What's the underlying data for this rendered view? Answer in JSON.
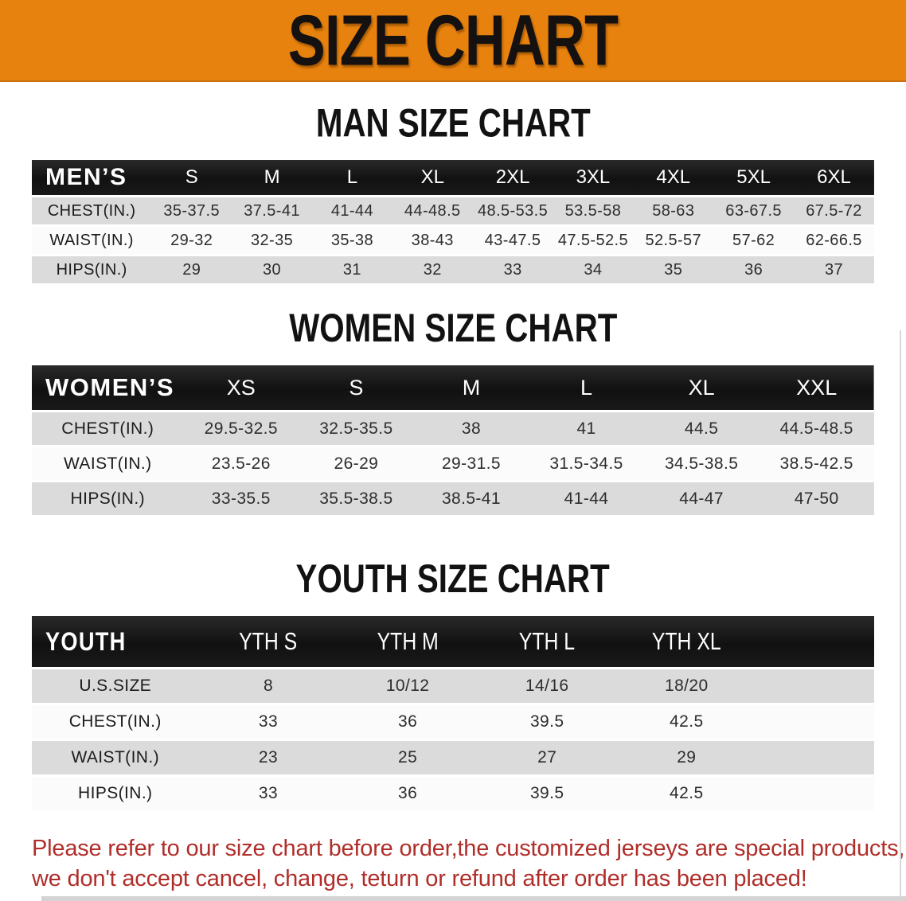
{
  "banner": {
    "title": "SIZE CHART"
  },
  "sections": [
    {
      "heading": "MAN SIZE CHART",
      "table": {
        "header_label": "MEN’S",
        "sizes": [
          "S",
          "M",
          "L",
          "XL",
          "2XL",
          "3XL",
          "4XL",
          "5XL",
          "6XL"
        ],
        "rows": [
          {
            "label": "CHEST(IN.)",
            "values": [
              "35-37.5",
              "37.5-41",
              "41-44",
              "44-48.5",
              "48.5-53.5",
              "53.5-58",
              "58-63",
              "63-67.5",
              "67.5-72"
            ]
          },
          {
            "label": "WAIST(IN.)",
            "values": [
              "29-32",
              "32-35",
              "35-38",
              "38-43",
              "43-47.5",
              "47.5-52.5",
              "52.5-57",
              "57-62",
              "62-66.5"
            ]
          },
          {
            "label": "HIPS(IN.)",
            "values": [
              "29",
              "30",
              "31",
              "32",
              "33",
              "34",
              "35",
              "36",
              "37"
            ]
          }
        ]
      }
    },
    {
      "heading": "WOMEN SIZE CHART",
      "table": {
        "header_label": "WOMEN’S",
        "sizes": [
          "XS",
          "S",
          "M",
          "L",
          "XL",
          "XXL"
        ],
        "rows": [
          {
            "label": "CHEST(IN.)",
            "values": [
              "29.5-32.5",
              "32.5-35.5",
              "38",
              "41",
              "44.5",
              "44.5-48.5"
            ]
          },
          {
            "label": "WAIST(IN.)",
            "values": [
              "23.5-26",
              "26-29",
              "29-31.5",
              "31.5-34.5",
              "34.5-38.5",
              "38.5-42.5"
            ]
          },
          {
            "label": "HIPS(IN.)",
            "values": [
              "33-35.5",
              "35.5-38.5",
              "38.5-41",
              "41-44",
              "44-47",
              "47-50"
            ]
          }
        ]
      }
    },
    {
      "heading": "YOUTH SIZE CHART",
      "table": {
        "header_label": "YOUTH",
        "sizes": [
          "YTH S",
          "YTH M",
          "YTH L",
          "YTH XL"
        ],
        "rows": [
          {
            "label": "U.S.SIZE",
            "values": [
              "8",
              "10/12",
              "14/16",
              "18/20"
            ]
          },
          {
            "label": "CHEST(IN.)",
            "values": [
              "33",
              "36",
              "39.5",
              "42.5"
            ]
          },
          {
            "label": "WAIST(IN.)",
            "values": [
              "23",
              "25",
              "27",
              "29"
            ]
          },
          {
            "label": "HIPS(IN.)",
            "values": [
              "33",
              "36",
              "39.5",
              "42.5"
            ]
          }
        ]
      }
    }
  ],
  "footnote": {
    "line1": "Please refer to our size chart before order,the customized jerseys are special products,",
    "line2": "we don't accept cancel, change, teturn or refund after order has been placed!"
  },
  "colors": {
    "banner_bg": "#E8820E",
    "table_header_bg": "#171717",
    "row_gray": "#DBDBDB",
    "row_white": "#FBFBFB",
    "footnote_red": "#B02E2A"
  }
}
